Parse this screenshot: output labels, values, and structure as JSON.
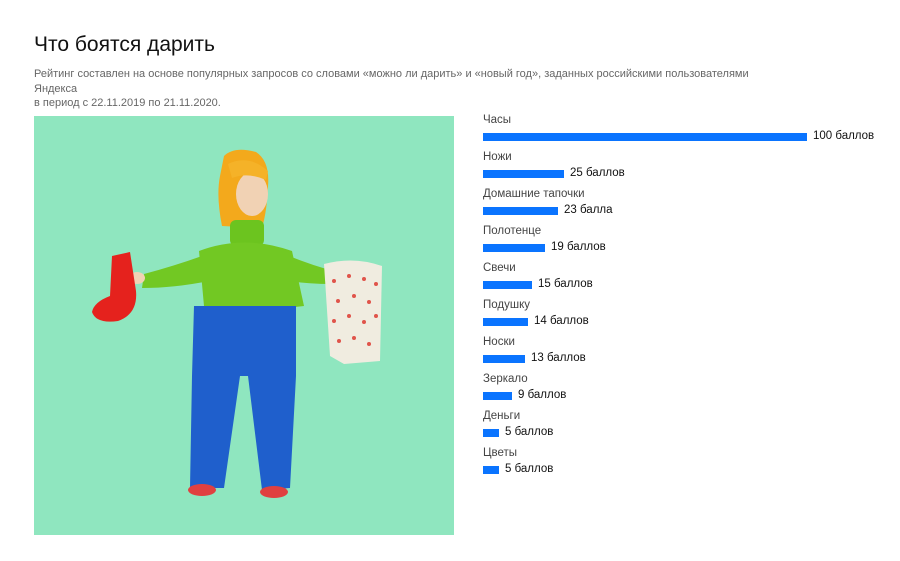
{
  "header": {
    "title": "Что боятся дарить",
    "subtitle_line1": "Рейтинг составлен на основе популярных запросов со словами «можно ли дарить» и «новый год», заданных российскими пользователями Яндекса",
    "subtitle_line2": "в период с 22.11.2019 по 21.11.2020."
  },
  "colors": {
    "accent": "#0a74ff",
    "background_illustration": "#8fe6bf"
  },
  "chart_data": {
    "type": "bar",
    "orientation": "horizontal",
    "xlim": [
      0,
      100
    ],
    "categories": [
      "Часы",
      "Ножи",
      "Домашние тапочки",
      "Полотенце",
      "Свечи",
      "Подушку",
      "Носки",
      "Зеркало",
      "Деньги",
      "Цветы"
    ],
    "values": [
      100,
      25,
      23,
      19,
      15,
      14,
      13,
      9,
      5,
      5
    ],
    "value_labels": [
      "100 баллов",
      "25 баллов",
      "23 балла",
      "19 баллов",
      "15 баллов",
      "14 баллов",
      "13 баллов",
      "9 баллов",
      "5 баллов",
      "5 баллов"
    ]
  }
}
